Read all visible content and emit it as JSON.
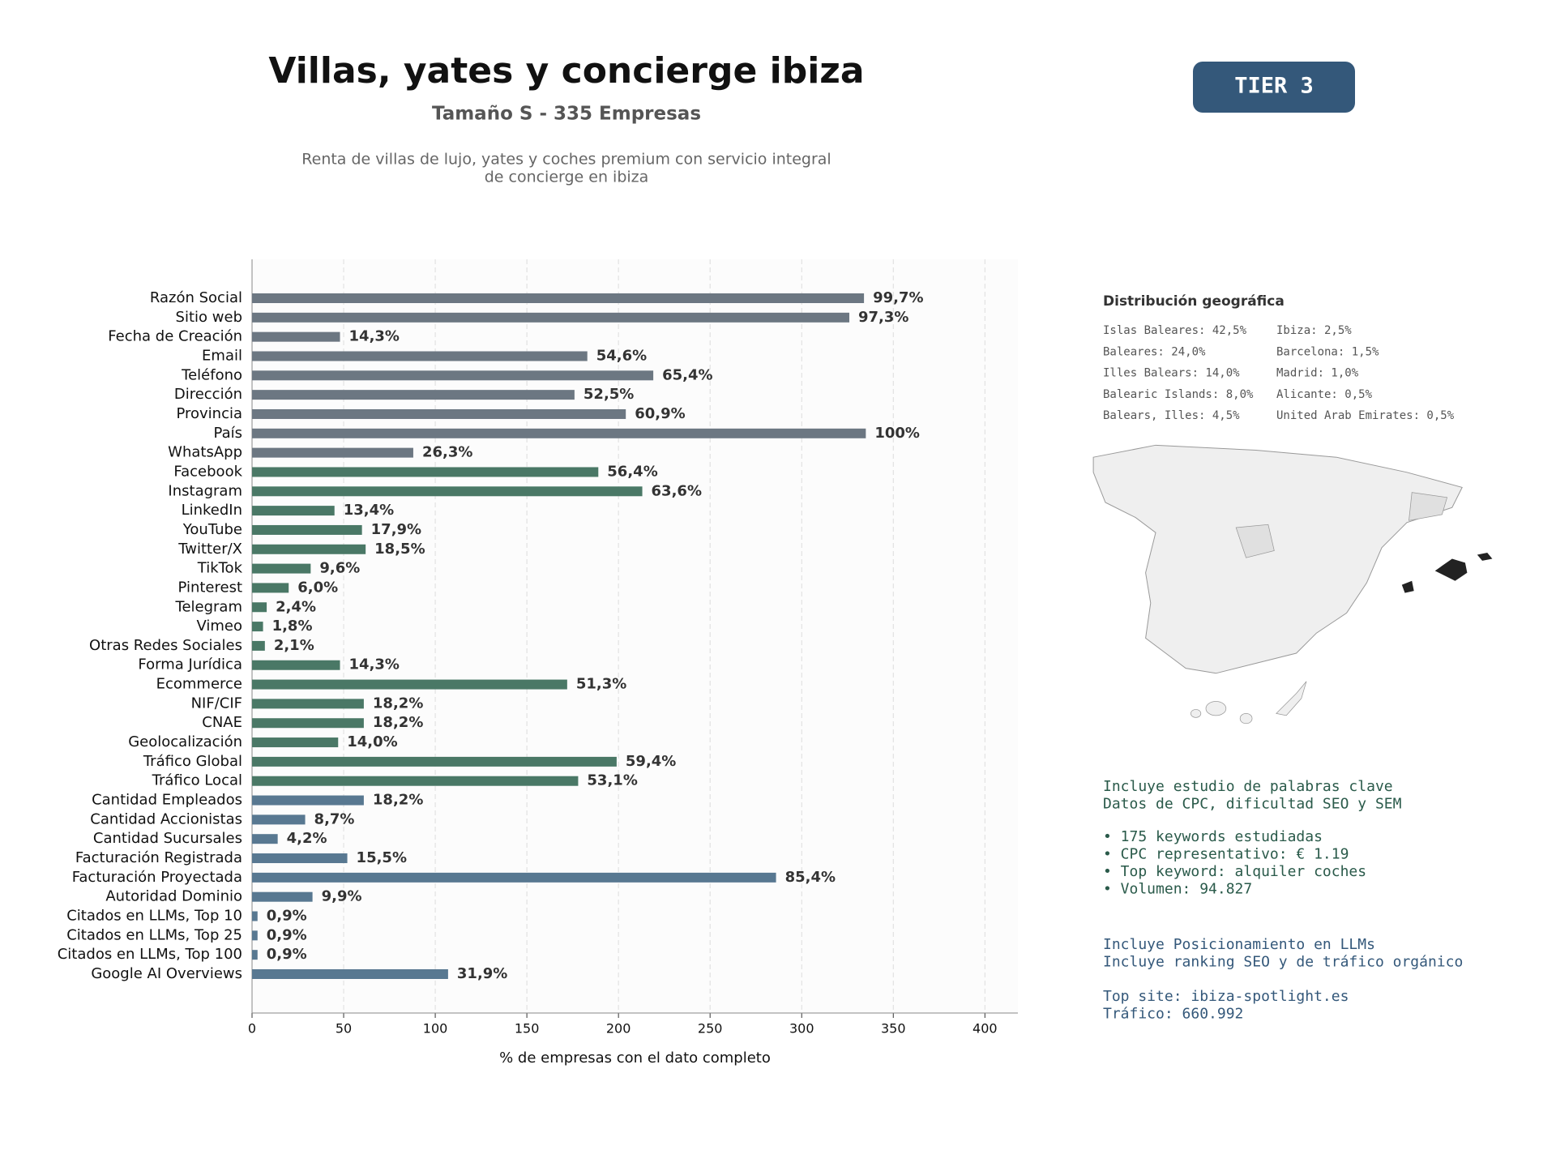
{
  "chart_data": {
    "type": "barh",
    "title": "Villas, yates y concierge ibiza",
    "subtitle": "Tamaño S - 335 Empresas",
    "description": [
      "Renta de villas de lujo, yates y coches premium con servicio integral",
      "de concierge en ibiza"
    ],
    "badge": "TIER 3",
    "xlabel": "% de empresas con el dato completo",
    "categories": [
      "Razón Social",
      "Sitio web",
      "Fecha de Creación",
      "Email",
      "Teléfono",
      "Dirección",
      "Provincia",
      "País",
      "WhatsApp",
      "Facebook",
      "Instagram",
      "LinkedIn",
      "YouTube",
      "Twitter/X",
      "TikTok",
      "Pinterest",
      "Telegram",
      "Vimeo",
      "Otras Redes Sociales",
      "Forma Jurídica",
      "Ecommerce",
      "NIF/CIF",
      "CNAE",
      "Geolocalización",
      "Tráfico Global",
      "Tráfico Local",
      "Cantidad Empleados",
      "Cantidad Accionistas",
      "Cantidad Sucursales",
      "Facturación Registrada",
      "Facturación Proyectada",
      "Autoridad Dominio",
      "Citados en LLMs, Top 10",
      "Citados en LLMs, Top 25",
      "Citados en LLMs, Top 100",
      "Google AI Overviews"
    ],
    "values": [
      334,
      326,
      48,
      183,
      219,
      176,
      204,
      335,
      88,
      189,
      213,
      45,
      60,
      62,
      32,
      20,
      8,
      6,
      7,
      48,
      172,
      61,
      61,
      47,
      199,
      178,
      61,
      29,
      14,
      52,
      286,
      33,
      3,
      3,
      3,
      107
    ],
    "value_labels": [
      "99,7%",
      "97,3%",
      "14,3%",
      "54,6%",
      "65,4%",
      "52,5%",
      "60,9%",
      "100%",
      "26,3%",
      "56,4%",
      "63,6%",
      "13,4%",
      "17,9%",
      "18,5%",
      "9,6%",
      "6,0%",
      "2,4%",
      "1,8%",
      "2,1%",
      "14,3%",
      "51,3%",
      "18,2%",
      "18,2%",
      "14,0%",
      "59,4%",
      "53,1%",
      "18,2%",
      "8,7%",
      "4,2%",
      "15,5%",
      "85,4%",
      "9,9%",
      "0,9%",
      "0,9%",
      "0,9%",
      "31,9%"
    ],
    "colors": [
      "#6c7782",
      "#6c7782",
      "#6c7782",
      "#6c7782",
      "#6c7782",
      "#6c7782",
      "#6c7782",
      "#6c7782",
      "#6c7782",
      "#4a7866",
      "#4a7866",
      "#4a7866",
      "#4a7866",
      "#4a7866",
      "#4a7866",
      "#4a7866",
      "#4a7866",
      "#4a7866",
      "#4a7866",
      "#4a7866",
      "#4a7866",
      "#4a7866",
      "#4a7866",
      "#4a7866",
      "#4a7866",
      "#4a7866",
      "#587891",
      "#587891",
      "#587891",
      "#587891",
      "#587891",
      "#587891",
      "#587891",
      "#587891",
      "#587891",
      "#587891"
    ],
    "xlim": [
      0,
      418
    ],
    "xticks": [
      0,
      50,
      100,
      150,
      200,
      250,
      300,
      350,
      400
    ],
    "grid": true,
    "geo": {
      "title": "Distribución geográfica",
      "items": [
        "Islas Baleares: 42,5%",
        "Baleares: 24,0%",
        "Illes Balears: 14,0%",
        "Balearic Islands: 8,0%",
        "Balears, Illes: 4,5%",
        "Ibiza: 2,5%",
        "Barcelona: 1,5%",
        "Madrid: 1,0%",
        "Alicante: 0,5%",
        "United Arab Emirates: 0,5%"
      ]
    },
    "keywords": {
      "intro": [
        "Incluye estudio de palabras clave",
        "Datos de CPC, dificultad SEO y SEM"
      ],
      "bullets": [
        "• 175 keywords estudiadas",
        "• CPC representativo: € 1.19",
        "• Top keyword: alquiler coches",
        "• Volumen: 94.827"
      ]
    },
    "llm": {
      "intro": [
        "Incluye Posicionamiento en LLMs",
        "Incluye ranking SEO y de tráfico orgánico"
      ],
      "top": [
        "Top site: ibiza-spotlight.es",
        "Tráfico: 660.992"
      ]
    }
  }
}
